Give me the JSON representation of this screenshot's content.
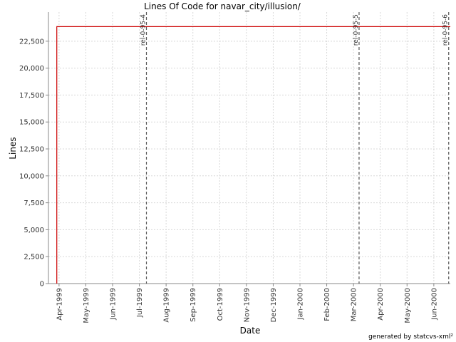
{
  "chart_data": {
    "type": "line",
    "title": "Lines Of Code for navar_city/illusion/",
    "x_label": "Date",
    "y_label": "Lines",
    "footer": "generated by statcvs-xml²",
    "xlim": [
      1999.217,
      2000.468
    ],
    "ylim": [
      0,
      25200
    ],
    "xticks": [
      {
        "value": 1999.25,
        "label": "Apr-1999"
      },
      {
        "value": 1999.3333,
        "label": "May-1999"
      },
      {
        "value": 1999.4167,
        "label": "Jun-1999"
      },
      {
        "value": 1999.5,
        "label": "Jul-1999"
      },
      {
        "value": 1999.5833,
        "label": "Aug-1999"
      },
      {
        "value": 1999.6667,
        "label": "Sep-1999"
      },
      {
        "value": 1999.75,
        "label": "Oct-1999"
      },
      {
        "value": 1999.8333,
        "label": "Nov-1999"
      },
      {
        "value": 1999.9167,
        "label": "Dec-1999"
      },
      {
        "value": 2000.0,
        "label": "Jan-2000"
      },
      {
        "value": 2000.0833,
        "label": "Feb-2000"
      },
      {
        "value": 2000.1667,
        "label": "Mar-2000"
      },
      {
        "value": 2000.25,
        "label": "Apr-2000"
      },
      {
        "value": 2000.3333,
        "label": "May-2000"
      },
      {
        "value": 2000.4167,
        "label": "Jun-2000"
      }
    ],
    "yticks": [
      0,
      {
        "value": 2500,
        "label": "2,500"
      },
      {
        "value": 5000,
        "label": "5,000"
      },
      {
        "value": 7500,
        "label": "7,500"
      },
      {
        "value": 10000,
        "label": "10,000"
      },
      {
        "value": 12500,
        "label": "12,500"
      },
      {
        "value": 15000,
        "label": "15,000"
      },
      {
        "value": 17500,
        "label": "17,500"
      },
      {
        "value": 20000,
        "label": "20,000"
      },
      {
        "value": 22500,
        "label": "22,500"
      }
    ],
    "grid": true,
    "series": [
      {
        "name": "Lines",
        "color": "#cc0000",
        "x": [
          1999.243,
          1999.243,
          2000.468
        ],
        "values": [
          0,
          23850,
          23850
        ]
      }
    ],
    "markers": [
      {
        "label": "rel-0-95-4",
        "x": 1999.522
      },
      {
        "label": "rel-0-95-5",
        "x": 2000.184
      },
      {
        "label": "rel-0-95-6",
        "x": 2000.463
      }
    ]
  }
}
